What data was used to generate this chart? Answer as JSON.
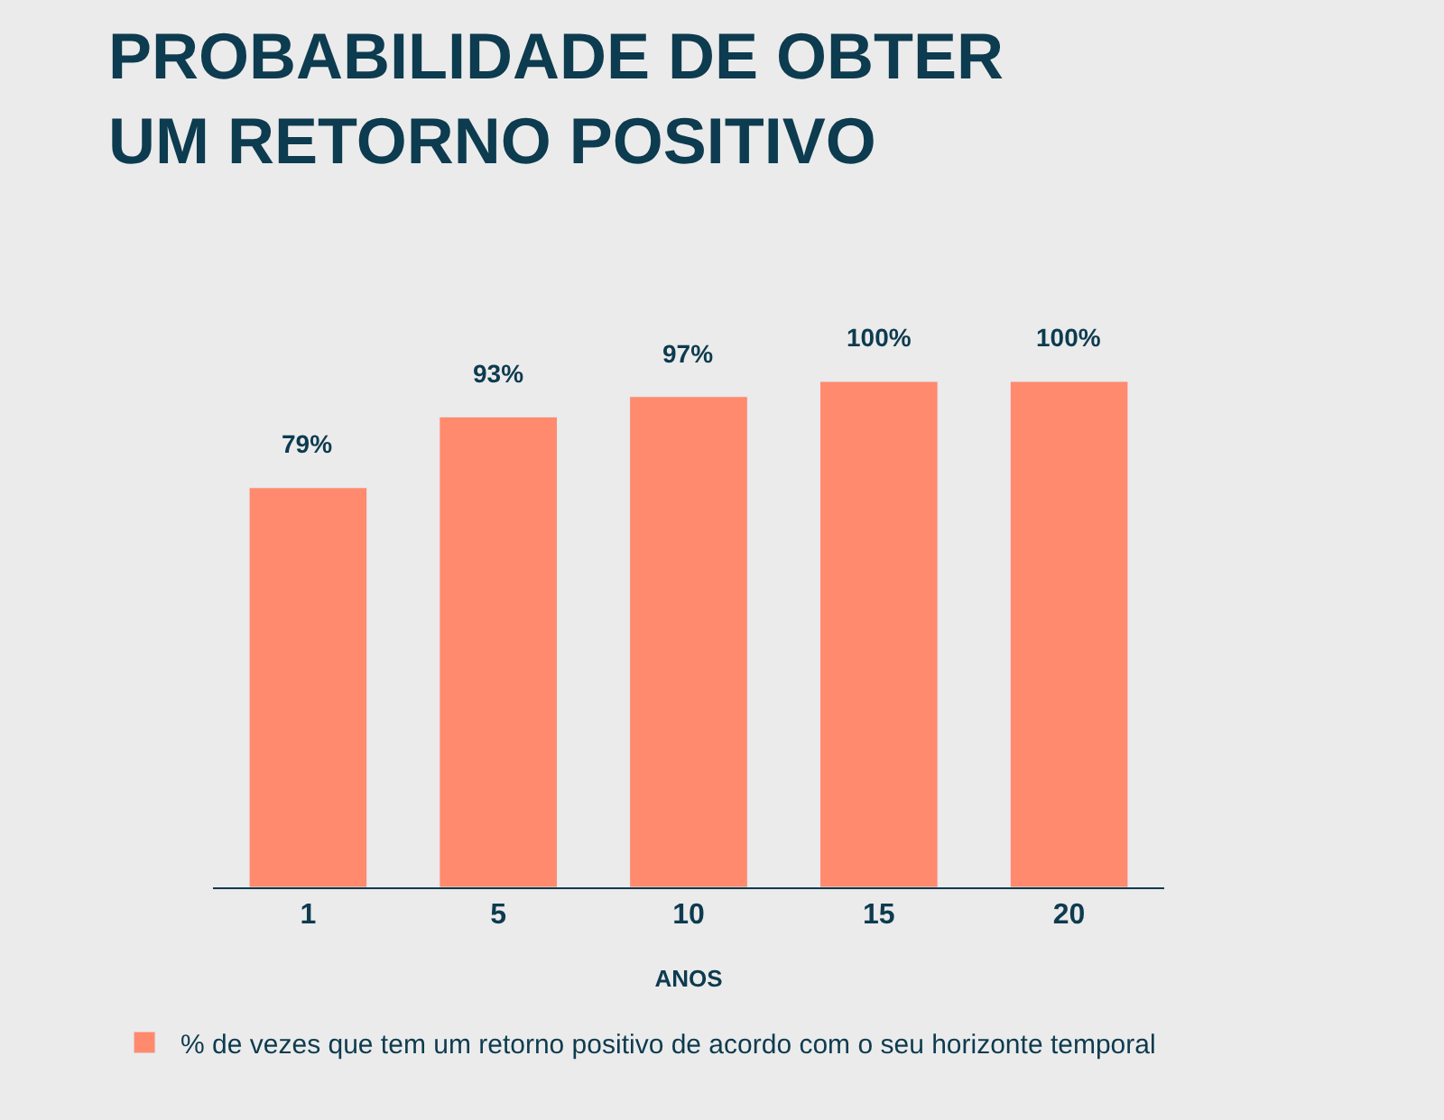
{
  "chart_data": {
    "type": "bar",
    "title": "PROBABILIDADE DE OBTER\nUM RETORNO POSITIVO",
    "xlabel": "ANOS",
    "categories": [
      "1",
      "5",
      "10",
      "15",
      "20"
    ],
    "series": [
      {
        "name": "% de vezes que tem um retorno positivo de acordo com o seu horizonte temporal",
        "color": "#ff8a6d",
        "values": [
          79,
          93,
          97,
          100,
          100
        ],
        "value_labels": [
          "79%",
          "93%",
          "97%",
          "100%",
          "100%"
        ]
      }
    ],
    "grid": false,
    "legend": "bottom left"
  }
}
